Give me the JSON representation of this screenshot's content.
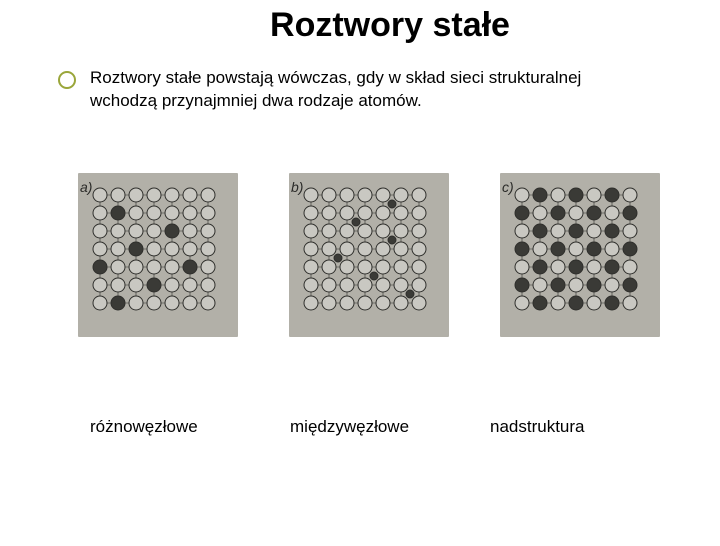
{
  "title": "Roztwory stałe",
  "description": "Roztwory stałe powstają wówczas, gdy w skład sieci strukturalnej wchodzą przynajmniej dwa rodzaje atomów.",
  "bullet_color": "#9aa63a",
  "diagrams": {
    "background": "#b2b0a8",
    "open_fill": "#c9c8c2",
    "open_stroke": "#2f2f2c",
    "filled_fill": "#3a3a36",
    "rows": 7,
    "cols": 7,
    "spacing": 18,
    "radius_open": 7,
    "radius_small": 4,
    "panels": [
      {
        "tag": "a)",
        "label": "różnowęzłowe",
        "type": "substitutional",
        "filled_positions": [
          [
            1,
            1
          ],
          [
            2,
            4
          ],
          [
            3,
            2
          ],
          [
            4,
            5
          ],
          [
            4,
            0
          ],
          [
            5,
            3
          ],
          [
            6,
            1
          ]
        ]
      },
      {
        "tag": "b)",
        "label": "międzywęzłowe",
        "type": "interstitial",
        "inter_positions": [
          [
            1.5,
            2.5
          ],
          [
            2.5,
            4.5
          ],
          [
            3.5,
            1.5
          ],
          [
            4.5,
            3.5
          ],
          [
            5.5,
            5.5
          ],
          [
            0.5,
            4.5
          ]
        ]
      },
      {
        "tag": "c)",
        "label": "nadstruktura",
        "type": "ordered",
        "filled_positions": [
          [
            0,
            1
          ],
          [
            0,
            3
          ],
          [
            0,
            5
          ],
          [
            1,
            0
          ],
          [
            1,
            2
          ],
          [
            1,
            4
          ],
          [
            1,
            6
          ],
          [
            2,
            1
          ],
          [
            2,
            3
          ],
          [
            2,
            5
          ],
          [
            3,
            0
          ],
          [
            3,
            2
          ],
          [
            3,
            4
          ],
          [
            3,
            6
          ],
          [
            4,
            1
          ],
          [
            4,
            3
          ],
          [
            4,
            5
          ],
          [
            5,
            0
          ],
          [
            5,
            2
          ],
          [
            5,
            4
          ],
          [
            5,
            6
          ],
          [
            6,
            1
          ],
          [
            6,
            3
          ],
          [
            6,
            5
          ]
        ]
      }
    ]
  }
}
